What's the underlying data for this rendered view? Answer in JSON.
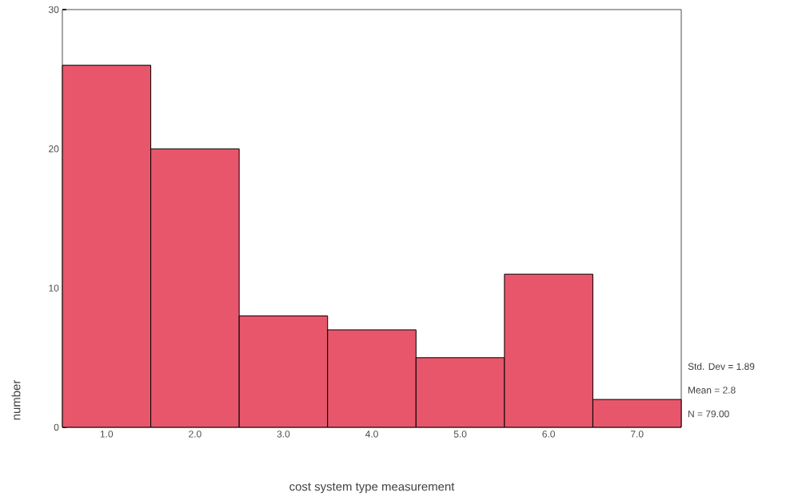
{
  "chart_data": {
    "type": "histogram",
    "xlabel": "cost system type measurement",
    "ylabel": "number",
    "bins": [
      0.5,
      1.5,
      2.5,
      3.5,
      4.5,
      5.5,
      6.5,
      7.5
    ],
    "values": [
      26,
      20,
      8,
      7,
      5,
      11,
      2
    ],
    "color": "#e8566b",
    "xlim": [
      0.5,
      7.5
    ],
    "ylim": [
      0,
      30
    ],
    "xticks": [
      {
        "value": 1,
        "label": "1.0"
      },
      {
        "value": 2,
        "label": "2.0"
      },
      {
        "value": 3,
        "label": "3.0"
      },
      {
        "value": 4,
        "label": "4.0"
      },
      {
        "value": 5,
        "label": "5.0"
      },
      {
        "value": 6,
        "label": "6.0"
      },
      {
        "value": 7,
        "label": "7.0"
      }
    ],
    "yticks": [
      0,
      10,
      20,
      30
    ],
    "annotations": [
      "Std. Dev = 1.89",
      "Mean = 2.8",
      "N = 79.00"
    ],
    "grid": false
  }
}
